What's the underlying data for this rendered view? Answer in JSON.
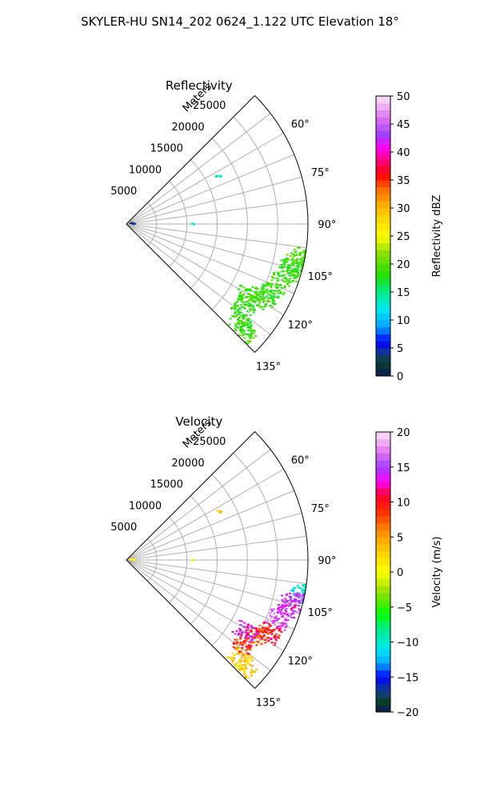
{
  "figure": {
    "title": "SKYLER-HU  SN14_202  0624_1.122 UTC Elevation 18°"
  },
  "chart_data": [
    {
      "type": "polar-sector",
      "title": "Reflectivity",
      "radial_axis_label": "Meters",
      "radial_ticks": [
        5000,
        10000,
        15000,
        20000,
        25000
      ],
      "radial_tick_labels": [
        "5000",
        "10000",
        "15000",
        "20000",
        "25000"
      ],
      "r_max": 30000,
      "theta_range_deg": [
        45,
        135
      ],
      "theta_ticks_deg": [
        60,
        75,
        90,
        105,
        120,
        135
      ],
      "theta_tick_labels": [
        "60°",
        "75°",
        "90°",
        "105°",
        "120°",
        "135°"
      ],
      "grid": true,
      "colorbar": {
        "label": "Reflectivity dBZ",
        "min": 0,
        "max": 50,
        "ticks": [
          0,
          5,
          10,
          15,
          20,
          25,
          30,
          35,
          40,
          45,
          50
        ],
        "tick_labels": [
          "0",
          "5",
          "10",
          "15",
          "20",
          "25",
          "30",
          "35",
          "40",
          "45",
          "50"
        ],
        "stops": [
          {
            "v": 0,
            "c": "#0a1a55"
          },
          {
            "v": 2.5,
            "c": "#0b3d2a"
          },
          {
            "v": 4,
            "c": "#123f8a"
          },
          {
            "v": 6,
            "c": "#0000ff"
          },
          {
            "v": 9,
            "c": "#00a8ff"
          },
          {
            "v": 12,
            "c": "#00e8f0"
          },
          {
            "v": 15,
            "c": "#00ee88"
          },
          {
            "v": 18,
            "c": "#22e000"
          },
          {
            "v": 22,
            "c": "#8ce000"
          },
          {
            "v": 25,
            "c": "#ffff00"
          },
          {
            "v": 29,
            "c": "#ffcc00"
          },
          {
            "v": 33,
            "c": "#ff7a00"
          },
          {
            "v": 36,
            "c": "#ff0000"
          },
          {
            "v": 38,
            "c": "#ff0066"
          },
          {
            "v": 41,
            "c": "#ff00ff"
          },
          {
            "v": 43,
            "c": "#a040ff"
          },
          {
            "v": 46,
            "c": "#e070f0"
          },
          {
            "v": 50,
            "c": "#fde6fd"
          }
        ]
      },
      "echo_regions": [
        {
          "theta_deg": 101,
          "r_m": 29500,
          "value": 19
        },
        {
          "theta_deg": 104,
          "r_m": 28500,
          "value": 19
        },
        {
          "theta_deg": 106,
          "r_m": 28000,
          "value": 18
        },
        {
          "theta_deg": 111,
          "r_m": 27000,
          "value": 19
        },
        {
          "theta_deg": 117,
          "r_m": 26500,
          "value": 18
        },
        {
          "theta_deg": 119,
          "r_m": 25000,
          "value": 19
        },
        {
          "theta_deg": 121,
          "r_m": 23000,
          "value": 19
        },
        {
          "theta_deg": 126,
          "r_m": 24000,
          "value": 18
        },
        {
          "theta_deg": 131,
          "r_m": 25000,
          "value": 18
        },
        {
          "theta_deg": 133,
          "r_m": 26500,
          "value": 19
        },
        {
          "theta_deg": 62,
          "r_m": 17000,
          "value": 14
        },
        {
          "theta_deg": 63,
          "r_m": 17500,
          "value": 14
        },
        {
          "theta_deg": 90,
          "r_m": 11000,
          "value": 13
        },
        {
          "theta_deg": 80,
          "r_m": 800,
          "value": 3
        },
        {
          "theta_deg": 88,
          "r_m": 1200,
          "value": 4
        }
      ]
    },
    {
      "type": "polar-sector",
      "title": "Velocity",
      "radial_axis_label": "Meters",
      "radial_ticks": [
        5000,
        10000,
        15000,
        20000,
        25000
      ],
      "radial_tick_labels": [
        "5000",
        "10000",
        "15000",
        "20000",
        "25000"
      ],
      "r_max": 30000,
      "theta_range_deg": [
        45,
        135
      ],
      "theta_ticks_deg": [
        60,
        75,
        90,
        105,
        120,
        135
      ],
      "theta_tick_labels": [
        "60°",
        "75°",
        "90°",
        "105°",
        "120°",
        "135°"
      ],
      "grid": true,
      "colorbar": {
        "label": "Velocity (m/s)",
        "min": -20,
        "max": 20,
        "ticks": [
          -20,
          -15,
          -10,
          -5,
          0,
          5,
          10,
          15,
          20
        ],
        "tick_labels": [
          "−20",
          "−15",
          "−10",
          "−5",
          "0",
          "5",
          "10",
          "15",
          "20"
        ],
        "stops": [
          {
            "v": -20,
            "c": "#0a1a55"
          },
          {
            "v": -18.5,
            "c": "#0b3d2a"
          },
          {
            "v": -17,
            "c": "#123f8a"
          },
          {
            "v": -15,
            "c": "#0000ff"
          },
          {
            "v": -13,
            "c": "#00a8ff"
          },
          {
            "v": -11,
            "c": "#00e8f0"
          },
          {
            "v": -8,
            "c": "#00ee88"
          },
          {
            "v": -6,
            "c": "#00ff00"
          },
          {
            "v": -3,
            "c": "#8ce000"
          },
          {
            "v": 0,
            "c": "#ffff00"
          },
          {
            "v": 3,
            "c": "#ffcc00"
          },
          {
            "v": 6,
            "c": "#ff8800"
          },
          {
            "v": 9,
            "c": "#ff2200"
          },
          {
            "v": 11,
            "c": "#ff0033"
          },
          {
            "v": 13,
            "c": "#ff00ff"
          },
          {
            "v": 15,
            "c": "#a040ff"
          },
          {
            "v": 17,
            "c": "#e070f0"
          },
          {
            "v": 20,
            "c": "#fde6fd"
          }
        ]
      },
      "echo_regions": [
        {
          "theta_deg": 101,
          "r_m": 29500,
          "value": -11
        },
        {
          "theta_deg": 104,
          "r_m": 28500,
          "value": 15
        },
        {
          "theta_deg": 106,
          "r_m": 28000,
          "value": 14
        },
        {
          "theta_deg": 111,
          "r_m": 27000,
          "value": 15
        },
        {
          "theta_deg": 117,
          "r_m": 26500,
          "value": 10
        },
        {
          "theta_deg": 119,
          "r_m": 25000,
          "value": 8
        },
        {
          "theta_deg": 121,
          "r_m": 23000,
          "value": 13
        },
        {
          "theta_deg": 126,
          "r_m": 24000,
          "value": 9
        },
        {
          "theta_deg": 131,
          "r_m": 25000,
          "value": 3
        },
        {
          "theta_deg": 133,
          "r_m": 26500,
          "value": 3
        },
        {
          "theta_deg": 62,
          "r_m": 17000,
          "value": 3
        },
        {
          "theta_deg": 63,
          "r_m": 17500,
          "value": 4
        },
        {
          "theta_deg": 90,
          "r_m": 11000,
          "value": 3
        },
        {
          "theta_deg": 80,
          "r_m": 800,
          "value": 3
        },
        {
          "theta_deg": 88,
          "r_m": 1200,
          "value": 2
        }
      ]
    }
  ]
}
